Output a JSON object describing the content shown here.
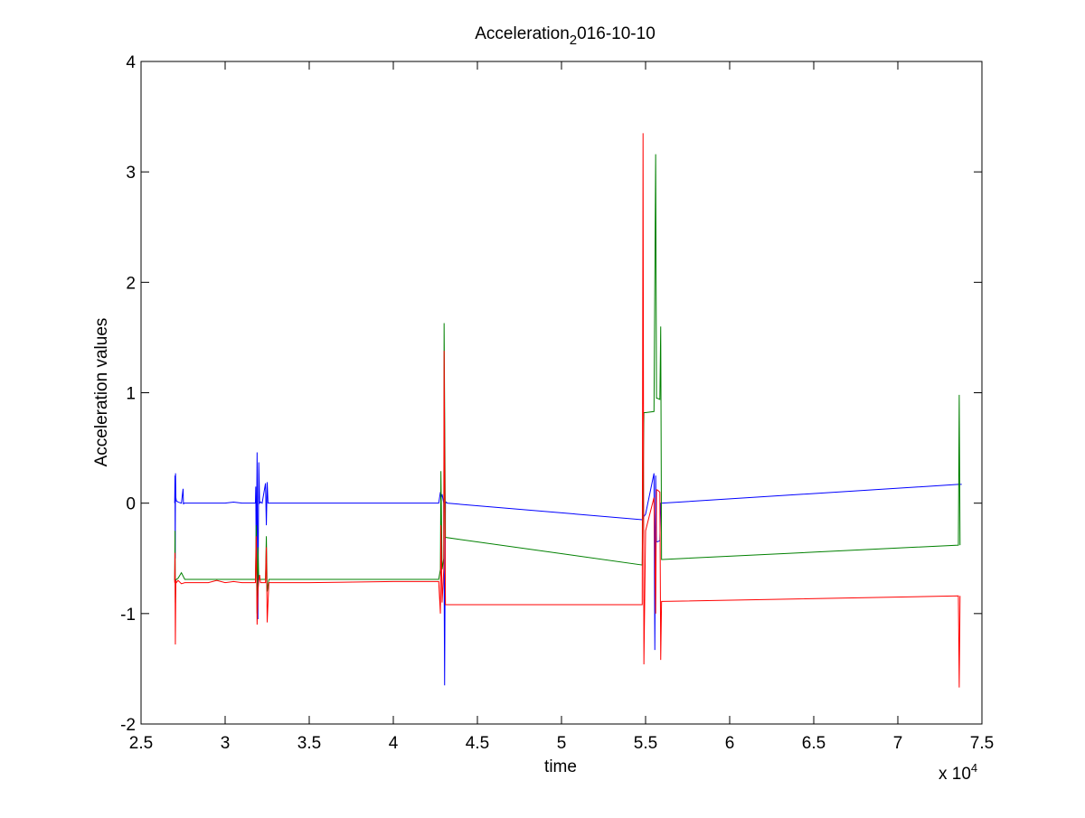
{
  "chart_data": {
    "type": "line",
    "title": {
      "main": "Acceleration",
      "subscript": "2",
      "rest": "016-10-10"
    },
    "xlabel": "time",
    "ylabel": "Acceleration values",
    "x_multiplier": {
      "base": "x 10",
      "exponent": "4"
    },
    "xlim": [
      2.5,
      7.5
    ],
    "ylim": [
      -2,
      4
    ],
    "x_ticks": [
      2.5,
      3,
      3.5,
      4,
      4.5,
      5,
      5.5,
      6,
      6.5,
      7,
      7.5
    ],
    "x_tick_labels": [
      "2.5",
      "3",
      "3.5",
      "4",
      "4.5",
      "5",
      "5.5",
      "6",
      "6.5",
      "7",
      "7.5"
    ],
    "y_ticks": [
      -2,
      -1,
      0,
      1,
      2,
      3,
      4
    ],
    "y_tick_labels": [
      "-2",
      "-1",
      "0",
      "1",
      "2",
      "3",
      "4"
    ],
    "grid": false,
    "series": [
      {
        "color": "#0000ff",
        "x": [
          2.7,
          2.702,
          2.703,
          2.705,
          2.707,
          2.71,
          2.72,
          2.74,
          2.75,
          2.752,
          2.755,
          2.76,
          2.8,
          2.9,
          2.95,
          3.0,
          3.05,
          3.1,
          3.18,
          3.182,
          3.185,
          3.19,
          3.195,
          3.2,
          3.205,
          3.21,
          3.22,
          3.24,
          3.245,
          3.25,
          3.255,
          3.26,
          3.3,
          3.5,
          4.0,
          4.27,
          4.28,
          4.285,
          4.29,
          4.3,
          4.305,
          4.31,
          4.315,
          4.32,
          5.48,
          5.49,
          5.5,
          5.55,
          5.555,
          5.56,
          5.565,
          5.57,
          5.585,
          5.59,
          5.595,
          5.6,
          7.36,
          7.37,
          7.375,
          7.38
        ],
        "y": [
          0.0,
          0.25,
          -0.5,
          0.27,
          0.05,
          0.02,
          0.01,
          0.0,
          0.13,
          -0.01,
          0.0,
          0.0,
          0.0,
          0.0,
          0.0,
          0.0,
          0.01,
          0.0,
          0.0,
          0.15,
          -0.6,
          0.46,
          -1.05,
          0.37,
          0.0,
          0.01,
          0.0,
          0.18,
          -0.2,
          0.19,
          0.0,
          0.0,
          0.0,
          0.0,
          0.0,
          0.0,
          0.1,
          0.05,
          0.08,
          0.0,
          -1.65,
          0.0,
          0.01,
          0.0,
          -0.15,
          -0.12,
          -0.1,
          0.27,
          -1.33,
          0.25,
          -0.35,
          -0.35,
          -0.34,
          0.0,
          0.0,
          0.0,
          0.17,
          0.17,
          0.17,
          0.17
        ]
      },
      {
        "color": "#008000",
        "x": [
          2.7,
          2.702,
          2.704,
          2.707,
          2.71,
          2.72,
          2.74,
          2.76,
          2.8,
          2.9,
          3.0,
          3.1,
          3.18,
          3.185,
          3.19,
          3.195,
          3.2,
          3.21,
          3.24,
          3.245,
          3.25,
          3.26,
          3.5,
          4.0,
          4.27,
          4.28,
          4.283,
          4.29,
          4.3,
          4.302,
          4.31,
          5.48,
          5.49,
          5.5,
          5.55,
          5.56,
          5.565,
          5.57,
          5.585,
          5.59,
          5.595,
          5.6,
          7.36,
          7.365,
          7.37
        ],
        "y": [
          -0.7,
          -0.25,
          -0.9,
          -0.7,
          -0.69,
          -0.68,
          -0.63,
          -0.69,
          -0.69,
          -0.69,
          -0.69,
          -0.69,
          -0.69,
          -0.2,
          -1.0,
          -0.4,
          -0.69,
          -0.69,
          -0.69,
          -0.3,
          -0.8,
          -0.69,
          -0.69,
          -0.69,
          -0.69,
          -0.6,
          0.29,
          -0.6,
          -0.5,
          1.63,
          -0.31,
          -0.56,
          0.82,
          0.82,
          0.83,
          3.16,
          0.95,
          0.95,
          0.94,
          1.6,
          -0.51,
          -0.51,
          -0.38,
          0.98,
          -0.38
        ]
      },
      {
        "color": "#ff0000",
        "x": [
          2.7,
          2.702,
          2.704,
          2.707,
          2.71,
          2.72,
          2.74,
          2.76,
          2.8,
          2.9,
          2.95,
          3.0,
          3.05,
          3.1,
          3.18,
          3.185,
          3.19,
          3.195,
          3.2,
          3.205,
          3.21,
          3.24,
          3.245,
          3.25,
          3.26,
          3.5,
          4.0,
          4.27,
          4.28,
          4.283,
          4.29,
          4.3,
          4.302,
          4.31,
          5.48,
          5.485,
          5.49,
          5.5,
          5.55,
          5.56,
          5.565,
          5.57,
          5.585,
          5.59,
          5.595,
          5.6,
          7.36,
          7.365,
          7.37
        ],
        "y": [
          -0.72,
          -0.45,
          -1.28,
          -0.7,
          -0.72,
          -0.7,
          -0.73,
          -0.72,
          -0.72,
          -0.72,
          -0.7,
          -0.72,
          -0.71,
          -0.72,
          -0.72,
          -0.3,
          -1.1,
          -0.8,
          -0.7,
          -0.65,
          -0.72,
          -0.72,
          -0.4,
          -1.08,
          -0.72,
          -0.72,
          -0.71,
          -0.71,
          -1.0,
          -0.2,
          -0.9,
          -0.6,
          1.38,
          -0.92,
          -0.92,
          3.35,
          -1.46,
          -0.25,
          0.05,
          -1.0,
          0.12,
          0.12,
          0.1,
          -1.42,
          -0.89,
          -0.89,
          -0.84,
          -1.67,
          -0.84
        ]
      }
    ]
  }
}
